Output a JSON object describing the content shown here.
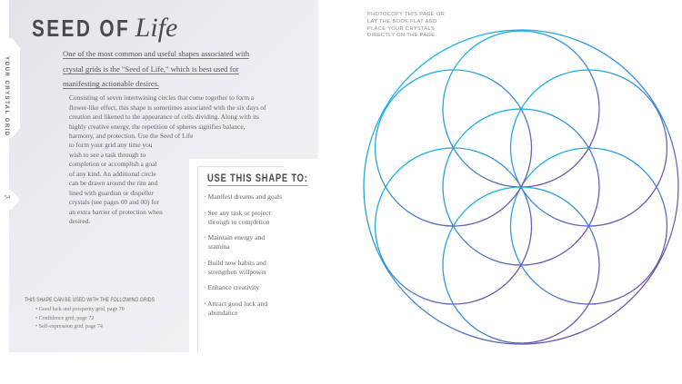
{
  "sidebar": {
    "section": "YOUR CRYSTAL GRID",
    "page_number": "54"
  },
  "title": {
    "caps": "SEED OF",
    "script": "Life"
  },
  "intro": "One of the most common and useful shapes associated with crystal grids is the \"Seed of Life,\" which is best used for manifesting actionable desires.",
  "body_top": "Consisting of seven intertwining circles that come together to form a flower-like effect, this shape is sometimes associated with the six days of creation and likened to the appearance of cells dividing. Along with its highly creative energy, the repetition of spheres signifies balance, harmony, and protection. Use the Seed of Life",
  "body_bottom": "to form your grid any time you wish to see a task through to completion or accomplish a goal of any kind. An additional circle can be drawn around the rim and lined with guardian or dispeller crystals (see pages 00 and 00) for an extra barrier of protection when desired.",
  "uses": {
    "title": "USE THIS SHAPE TO:",
    "items": [
      "Manifest dreams and goals",
      "See any task or project through to completion",
      "Maintain energy and stamina",
      "Build new habits and strengthen willpower",
      "Enhance creativity",
      "Attract good luck and abundance"
    ]
  },
  "grids": {
    "heading": "THIS SHAPE CAN BE USED WITH THE FOLLOWING GRIDS",
    "items": [
      "Good luck and prosperity grid, page 70",
      "Confidence grid, page 72",
      "Self-expression grid, page 74"
    ]
  },
  "photocopy_note": "PHOTOCOPY THIS PAGE OR LAY THE BOOK FLAT AND PLACE YOUR CRYSTALS DIRECTLY ON THE PAGE.",
  "figure": {
    "name": "seed-of-life",
    "circle_count": 7,
    "outer_ring": true,
    "gradient": [
      "#16b4ea",
      "#3f86d0",
      "#7a4aa6"
    ]
  }
}
